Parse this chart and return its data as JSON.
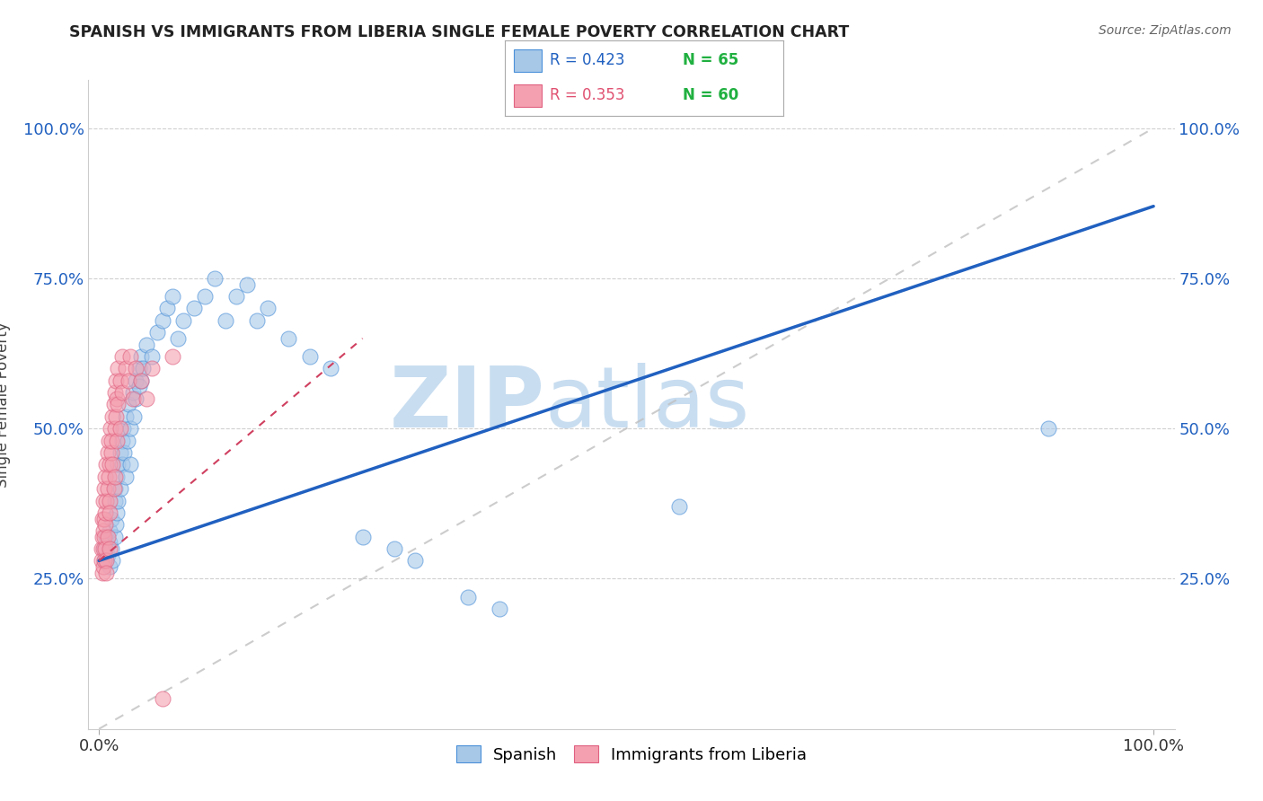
{
  "title": "SPANISH VS IMMIGRANTS FROM LIBERIA SINGLE FEMALE POVERTY CORRELATION CHART",
  "source": "Source: ZipAtlas.com",
  "ylabel": "Single Female Poverty",
  "ytick_vals": [
    0.25,
    0.5,
    0.75,
    1.0
  ],
  "ytick_labels": [
    "25.0%",
    "50.0%",
    "75.0%",
    "100.0%"
  ],
  "xtick_vals": [
    0.0,
    1.0
  ],
  "xtick_labels": [
    "0.0%",
    "100.0%"
  ],
  "legend_r1": "R = 0.423",
  "legend_n1": "N = 65",
  "legend_r2": "R = 0.353",
  "legend_n2": "N = 60",
  "blue_fill": "#a8c8e8",
  "blue_edge": "#4a90d9",
  "pink_fill": "#f4a0b0",
  "pink_edge": "#e06080",
  "blue_line_color": "#2060c0",
  "pink_line_color": "#d04060",
  "diagonal_color": "#c0c0c0",
  "grid_color": "#d0d0d0",
  "bg_color": "#ffffff",
  "legend_text_blue": "#2060c0",
  "legend_text_pink": "#e05070",
  "legend_n_color": "#20b040",
  "watermark_color": "#c8ddf0",
  "blue_scatter": [
    [
      0.005,
      0.3
    ],
    [
      0.005,
      0.28
    ],
    [
      0.007,
      0.32
    ],
    [
      0.008,
      0.29
    ],
    [
      0.01,
      0.31
    ],
    [
      0.01,
      0.27
    ],
    [
      0.01,
      0.33
    ],
    [
      0.012,
      0.3
    ],
    [
      0.012,
      0.35
    ],
    [
      0.013,
      0.28
    ],
    [
      0.015,
      0.32
    ],
    [
      0.015,
      0.38
    ],
    [
      0.015,
      0.4
    ],
    [
      0.016,
      0.34
    ],
    [
      0.017,
      0.36
    ],
    [
      0.017,
      0.42
    ],
    [
      0.018,
      0.44
    ],
    [
      0.018,
      0.38
    ],
    [
      0.02,
      0.46
    ],
    [
      0.02,
      0.4
    ],
    [
      0.022,
      0.48
    ],
    [
      0.022,
      0.44
    ],
    [
      0.023,
      0.5
    ],
    [
      0.024,
      0.46
    ],
    [
      0.025,
      0.52
    ],
    [
      0.025,
      0.42
    ],
    [
      0.027,
      0.48
    ],
    [
      0.028,
      0.54
    ],
    [
      0.03,
      0.5
    ],
    [
      0.03,
      0.44
    ],
    [
      0.032,
      0.56
    ],
    [
      0.033,
      0.52
    ],
    [
      0.035,
      0.58
    ],
    [
      0.035,
      0.55
    ],
    [
      0.038,
      0.6
    ],
    [
      0.038,
      0.57
    ],
    [
      0.04,
      0.58
    ],
    [
      0.04,
      0.62
    ],
    [
      0.042,
      0.6
    ],
    [
      0.045,
      0.64
    ],
    [
      0.05,
      0.62
    ],
    [
      0.055,
      0.66
    ],
    [
      0.06,
      0.68
    ],
    [
      0.065,
      0.7
    ],
    [
      0.07,
      0.72
    ],
    [
      0.075,
      0.65
    ],
    [
      0.08,
      0.68
    ],
    [
      0.09,
      0.7
    ],
    [
      0.1,
      0.72
    ],
    [
      0.11,
      0.75
    ],
    [
      0.12,
      0.68
    ],
    [
      0.13,
      0.72
    ],
    [
      0.14,
      0.74
    ],
    [
      0.15,
      0.68
    ],
    [
      0.16,
      0.7
    ],
    [
      0.18,
      0.65
    ],
    [
      0.2,
      0.62
    ],
    [
      0.22,
      0.6
    ],
    [
      0.25,
      0.32
    ],
    [
      0.28,
      0.3
    ],
    [
      0.3,
      0.28
    ],
    [
      0.35,
      0.22
    ],
    [
      0.38,
      0.2
    ],
    [
      0.55,
      0.37
    ],
    [
      0.9,
      0.5
    ]
  ],
  "pink_scatter": [
    [
      0.002,
      0.3
    ],
    [
      0.002,
      0.28
    ],
    [
      0.003,
      0.32
    ],
    [
      0.003,
      0.35
    ],
    [
      0.003,
      0.26
    ],
    [
      0.004,
      0.3
    ],
    [
      0.004,
      0.38
    ],
    [
      0.004,
      0.33
    ],
    [
      0.004,
      0.27
    ],
    [
      0.005,
      0.32
    ],
    [
      0.005,
      0.28
    ],
    [
      0.005,
      0.35
    ],
    [
      0.005,
      0.4
    ],
    [
      0.006,
      0.34
    ],
    [
      0.006,
      0.36
    ],
    [
      0.006,
      0.3
    ],
    [
      0.006,
      0.42
    ],
    [
      0.007,
      0.38
    ],
    [
      0.007,
      0.44
    ],
    [
      0.007,
      0.28
    ],
    [
      0.007,
      0.26
    ],
    [
      0.008,
      0.4
    ],
    [
      0.008,
      0.46
    ],
    [
      0.008,
      0.32
    ],
    [
      0.009,
      0.48
    ],
    [
      0.009,
      0.42
    ],
    [
      0.01,
      0.44
    ],
    [
      0.01,
      0.38
    ],
    [
      0.01,
      0.36
    ],
    [
      0.01,
      0.3
    ],
    [
      0.011,
      0.5
    ],
    [
      0.012,
      0.46
    ],
    [
      0.012,
      0.48
    ],
    [
      0.013,
      0.52
    ],
    [
      0.013,
      0.44
    ],
    [
      0.014,
      0.54
    ],
    [
      0.014,
      0.4
    ],
    [
      0.015,
      0.56
    ],
    [
      0.015,
      0.5
    ],
    [
      0.015,
      0.42
    ],
    [
      0.016,
      0.58
    ],
    [
      0.016,
      0.52
    ],
    [
      0.017,
      0.55
    ],
    [
      0.017,
      0.48
    ],
    [
      0.018,
      0.6
    ],
    [
      0.018,
      0.54
    ],
    [
      0.02,
      0.58
    ],
    [
      0.02,
      0.5
    ],
    [
      0.022,
      0.62
    ],
    [
      0.022,
      0.56
    ],
    [
      0.025,
      0.6
    ],
    [
      0.028,
      0.58
    ],
    [
      0.03,
      0.62
    ],
    [
      0.032,
      0.55
    ],
    [
      0.035,
      0.6
    ],
    [
      0.04,
      0.58
    ],
    [
      0.045,
      0.55
    ],
    [
      0.05,
      0.6
    ],
    [
      0.06,
      0.05
    ],
    [
      0.07,
      0.62
    ]
  ],
  "blue_line_x0": 0.0,
  "blue_line_y0": 0.28,
  "blue_line_x1": 1.0,
  "blue_line_y1": 0.87,
  "pink_line_x0": 0.0,
  "pink_line_y0": 0.28,
  "pink_line_x1": 0.25,
  "pink_line_y1": 0.65
}
